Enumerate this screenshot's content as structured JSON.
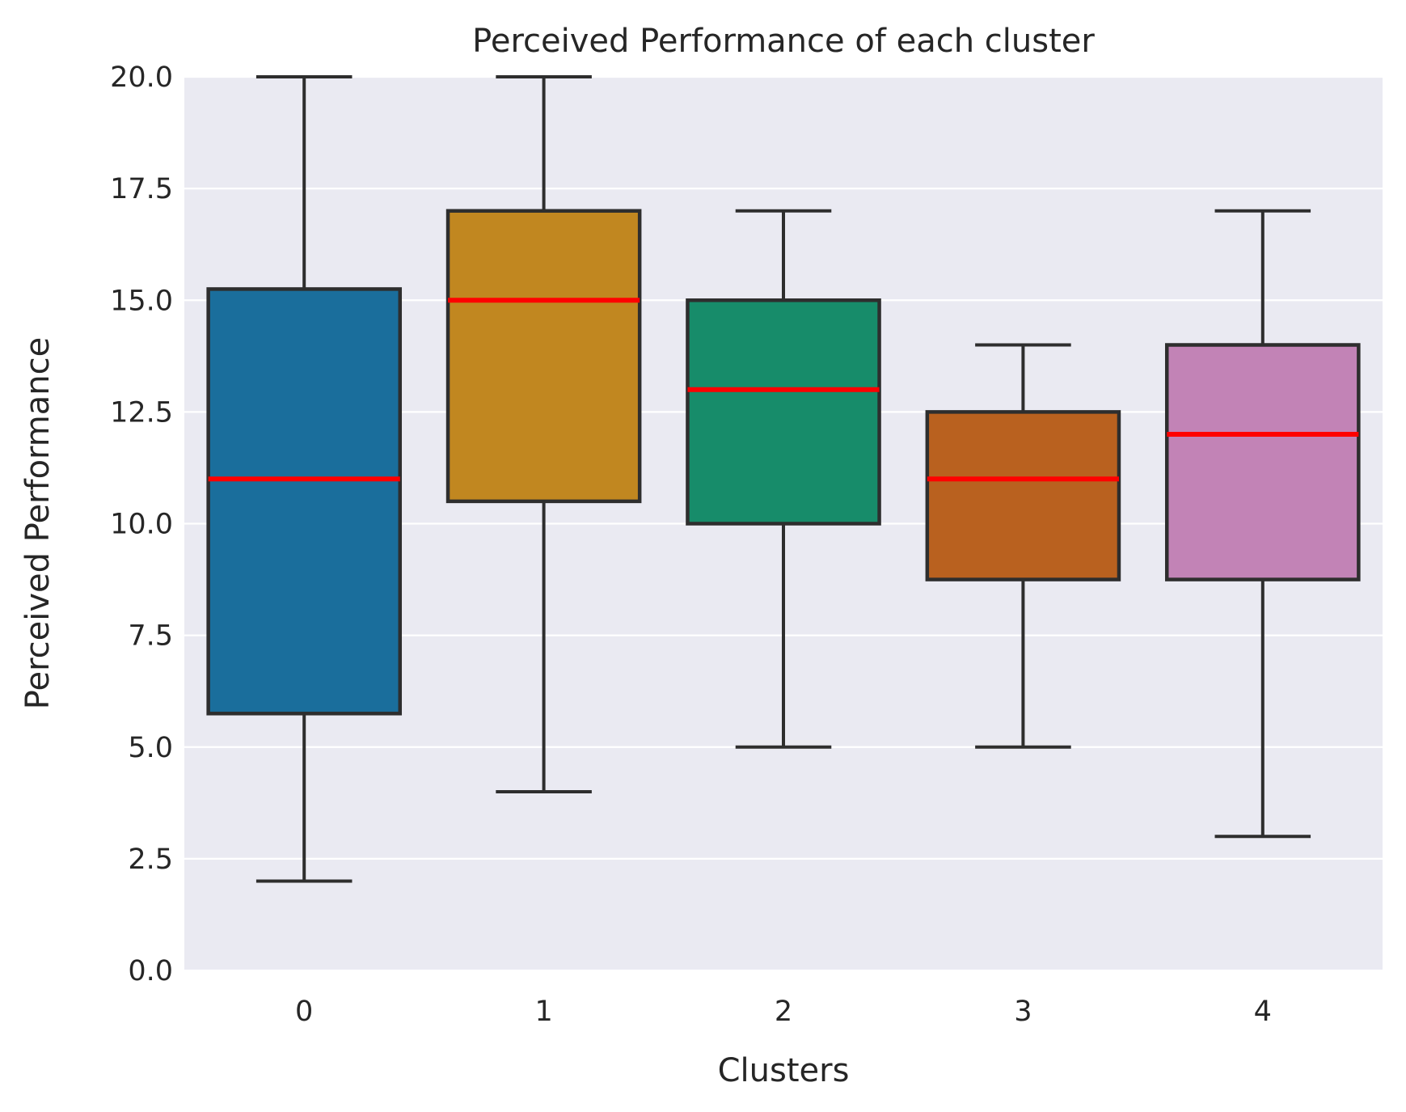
{
  "chart_data": {
    "type": "box",
    "title": "Perceived Performance of each cluster",
    "xlabel": "Clusters",
    "ylabel": "Perceived Performance",
    "ylim": [
      0,
      20
    ],
    "yticks": [
      "0.0",
      "2.5",
      "5.0",
      "7.5",
      "10.0",
      "12.5",
      "15.0",
      "17.5",
      "20.0"
    ],
    "grid": "horizontal",
    "background_color": "#eaeaf2",
    "median_color": "#ff0000",
    "categories": [
      "0",
      "1",
      "2",
      "3",
      "4"
    ],
    "boxes": [
      {
        "category": "0",
        "whisker_low": 2.0,
        "q1": 5.75,
        "median": 11.0,
        "q3": 15.25,
        "whisker_high": 20.0,
        "color": "#1a6e9c"
      },
      {
        "category": "1",
        "whisker_low": 4.0,
        "q1": 10.5,
        "median": 15.0,
        "q3": 17.0,
        "whisker_high": 20.0,
        "color": "#c18720"
      },
      {
        "category": "2",
        "whisker_low": 5.0,
        "q1": 10.0,
        "median": 13.0,
        "q3": 15.0,
        "whisker_high": 17.0,
        "color": "#178c6a"
      },
      {
        "category": "3",
        "whisker_low": 5.0,
        "q1": 8.75,
        "median": 11.0,
        "q3": 12.5,
        "whisker_high": 14.0,
        "color": "#b9611f"
      },
      {
        "category": "4",
        "whisker_low": 3.0,
        "q1": 8.75,
        "median": 12.0,
        "q3": 14.0,
        "whisker_high": 17.0,
        "color": "#c283b6"
      }
    ]
  }
}
